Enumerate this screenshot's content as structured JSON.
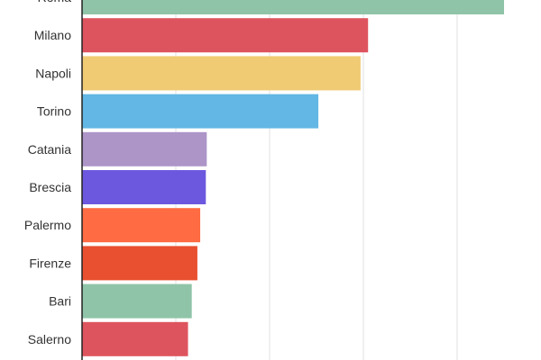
{
  "chart_data": {
    "type": "bar",
    "orientation": "horizontal",
    "categories": [
      "Roma",
      "Milano",
      "Napoli",
      "Torino",
      "Catania",
      "Brescia",
      "Palermo",
      "Firenze",
      "Bari",
      "Salerno"
    ],
    "values": [
      225,
      152.5,
      148.5,
      126,
      66.5,
      66,
      63,
      61.5,
      58.5,
      56.5
    ],
    "colors": [
      "#8fc4a8",
      "#de545e",
      "#f0cb74",
      "#63b7e4",
      "#ad95c8",
      "#6b58de",
      "#ff6b42",
      "#e8502f",
      "#8fc4a8",
      "#de545e"
    ],
    "xlim": [
      0,
      240
    ],
    "grid": true,
    "title": "",
    "xlabel": "",
    "ylabel": ""
  }
}
